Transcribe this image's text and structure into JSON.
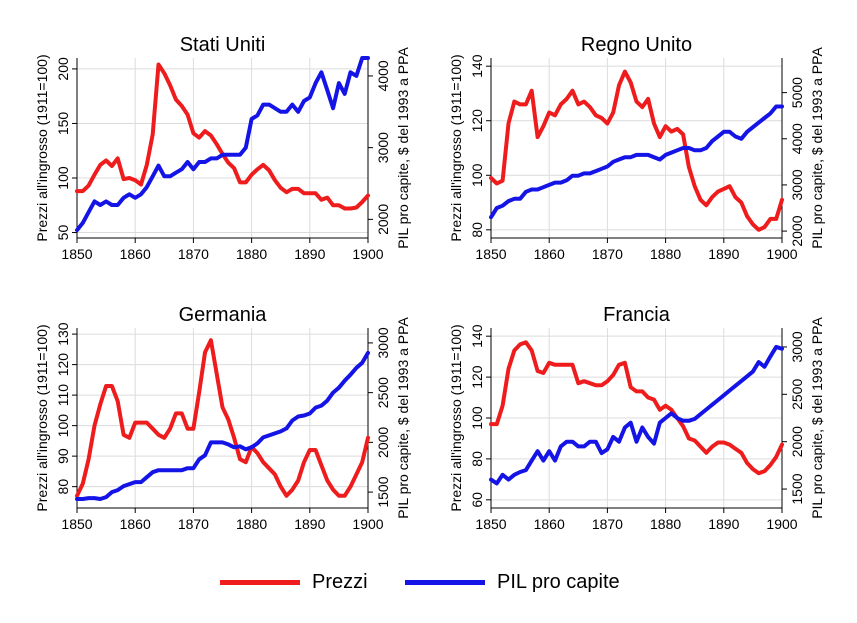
{
  "colors": {
    "prices": "#ee1c1c",
    "gdp": "#1414e6",
    "grid": "#dcdcdc"
  },
  "legend": {
    "prices": "Prezzi",
    "gdp": "PIL pro capite"
  },
  "chart_data": [
    {
      "type": "line",
      "title": "Stati Uniti",
      "ylabel_left": "Prezzi all'ingrosso (1911=100)",
      "ylabel_right": "PIL pro capite, $ del 1993 a PPA",
      "xlim": [
        1850,
        1900
      ],
      "ylim_left": [
        45,
        210
      ],
      "ylim_right": [
        1740,
        4250
      ],
      "x_ticks": [
        1850,
        1860,
        1870,
        1880,
        1890,
        1900
      ],
      "y_ticks_left": [
        50,
        100,
        150,
        200
      ],
      "y_ticks_right": [
        2000,
        3000,
        4000
      ],
      "series": [
        {
          "name": "Prezzi",
          "axis": "left",
          "x": [
            1850,
            1851,
            1852,
            1853,
            1854,
            1855,
            1856,
            1857,
            1858,
            1859,
            1860,
            1861,
            1862,
            1863,
            1864,
            1865,
            1866,
            1867,
            1868,
            1869,
            1870,
            1871,
            1872,
            1873,
            1874,
            1875,
            1876,
            1877,
            1878,
            1879,
            1880,
            1881,
            1882,
            1883,
            1884,
            1885,
            1886,
            1887,
            1888,
            1889,
            1890,
            1891,
            1892,
            1893,
            1894,
            1895,
            1896,
            1897,
            1898,
            1899,
            1900
          ],
          "values": [
            88,
            88,
            93,
            103,
            112,
            116,
            111,
            118,
            99,
            100,
            98,
            94,
            112,
            140,
            204,
            196,
            185,
            172,
            166,
            158,
            141,
            137,
            143,
            139,
            131,
            122,
            114,
            109,
            96,
            96,
            103,
            108,
            112,
            107,
            98,
            91,
            87,
            90,
            90,
            86,
            86,
            86,
            80,
            82,
            75,
            75,
            72,
            72,
            73,
            78,
            84
          ]
        },
        {
          "name": "PIL pro capite",
          "axis": "right",
          "x": [
            1850,
            1851,
            1852,
            1853,
            1854,
            1855,
            1856,
            1857,
            1858,
            1859,
            1860,
            1861,
            1862,
            1863,
            1864,
            1865,
            1866,
            1867,
            1868,
            1869,
            1870,
            1871,
            1872,
            1873,
            1874,
            1875,
            1876,
            1877,
            1878,
            1879,
            1880,
            1881,
            1882,
            1883,
            1884,
            1885,
            1886,
            1887,
            1888,
            1889,
            1890,
            1891,
            1892,
            1893,
            1894,
            1895,
            1896,
            1897,
            1898,
            1899,
            1900
          ],
          "values": [
            1850,
            1950,
            2100,
            2250,
            2200,
            2250,
            2200,
            2200,
            2300,
            2350,
            2300,
            2350,
            2450,
            2600,
            2750,
            2600,
            2600,
            2650,
            2700,
            2800,
            2700,
            2800,
            2800,
            2850,
            2850,
            2900,
            2900,
            2900,
            2900,
            3000,
            3400,
            3450,
            3600,
            3600,
            3550,
            3500,
            3500,
            3600,
            3500,
            3650,
            3700,
            3900,
            4050,
            3800,
            3550,
            3900,
            3750,
            4050,
            4000,
            4250,
            4250
          ]
        }
      ]
    },
    {
      "type": "line",
      "title": "Regno Unito",
      "ylabel_left": "Prezzi all'ingrosso (1911=100)",
      "ylabel_right": "PIL pro capite, $ del 1993 a PPA",
      "xlim": [
        1850,
        1900
      ],
      "ylim_left": [
        77,
        143
      ],
      "ylim_right": [
        1850,
        5750
      ],
      "x_ticks": [
        1850,
        1860,
        1870,
        1880,
        1890,
        1900
      ],
      "y_ticks_left": [
        80,
        100,
        120,
        140
      ],
      "y_ticks_right": [
        2000,
        3000,
        4000,
        5000
      ],
      "series": [
        {
          "name": "Prezzi",
          "axis": "left",
          "x": [
            1850,
            1851,
            1852,
            1853,
            1854,
            1855,
            1856,
            1857,
            1858,
            1859,
            1860,
            1861,
            1862,
            1863,
            1864,
            1865,
            1866,
            1867,
            1868,
            1869,
            1870,
            1871,
            1872,
            1873,
            1874,
            1875,
            1876,
            1877,
            1878,
            1879,
            1880,
            1881,
            1882,
            1883,
            1884,
            1885,
            1886,
            1887,
            1888,
            1889,
            1890,
            1891,
            1892,
            1893,
            1894,
            1895,
            1896,
            1897,
            1898,
            1899,
            1900
          ],
          "values": [
            99,
            97,
            98,
            119,
            127,
            126,
            126,
            131,
            114,
            118,
            123,
            122,
            126,
            128,
            131,
            126,
            127,
            125,
            122,
            121,
            119,
            123,
            133,
            138,
            134,
            127,
            125,
            128,
            119,
            114,
            118,
            116,
            117,
            115,
            103,
            96,
            91,
            89,
            92,
            94,
            95,
            96,
            92,
            90,
            85,
            82,
            80,
            81,
            84,
            84,
            91
          ]
        },
        {
          "name": "PIL pro capite",
          "axis": "right",
          "x": [
            1850,
            1851,
            1852,
            1853,
            1854,
            1855,
            1856,
            1857,
            1858,
            1859,
            1860,
            1861,
            1862,
            1863,
            1864,
            1865,
            1866,
            1867,
            1868,
            1869,
            1870,
            1871,
            1872,
            1873,
            1874,
            1875,
            1876,
            1877,
            1878,
            1879,
            1880,
            1881,
            1882,
            1883,
            1884,
            1885,
            1886,
            1887,
            1888,
            1889,
            1890,
            1891,
            1892,
            1893,
            1894,
            1895,
            1896,
            1897,
            1898,
            1899,
            1900
          ],
          "values": [
            2300,
            2500,
            2550,
            2650,
            2700,
            2700,
            2850,
            2900,
            2900,
            2950,
            3000,
            3050,
            3050,
            3100,
            3200,
            3200,
            3250,
            3250,
            3300,
            3350,
            3400,
            3500,
            3550,
            3600,
            3600,
            3650,
            3650,
            3650,
            3600,
            3550,
            3650,
            3700,
            3750,
            3800,
            3800,
            3750,
            3750,
            3800,
            3950,
            4050,
            4150,
            4150,
            4050,
            4000,
            4150,
            4250,
            4350,
            4450,
            4550,
            4700,
            4700
          ]
        }
      ]
    },
    {
      "type": "line",
      "title": "Germania",
      "ylabel_left": "Prezzi all'ingrosso (1911=100)",
      "ylabel_right": "PIL pro capite, $ del 1993 a PPA",
      "xlim": [
        1850,
        1900
      ],
      "ylim_left": [
        73,
        132
      ],
      "ylim_right": [
        1340,
        3150
      ],
      "x_ticks": [
        1850,
        1860,
        1870,
        1880,
        1890,
        1900
      ],
      "y_ticks_left": [
        80,
        90,
        100,
        110,
        120,
        130
      ],
      "y_ticks_right": [
        1500,
        2000,
        2500,
        3000
      ],
      "series": [
        {
          "name": "Prezzi",
          "axis": "left",
          "x": [
            1850,
            1851,
            1852,
            1853,
            1854,
            1855,
            1856,
            1857,
            1858,
            1859,
            1860,
            1861,
            1862,
            1863,
            1864,
            1865,
            1866,
            1867,
            1868,
            1869,
            1870,
            1871,
            1872,
            1873,
            1874,
            1875,
            1876,
            1877,
            1878,
            1879,
            1880,
            1881,
            1882,
            1883,
            1884,
            1885,
            1886,
            1887,
            1888,
            1889,
            1890,
            1891,
            1892,
            1893,
            1894,
            1895,
            1896,
            1897,
            1898,
            1899,
            1900
          ],
          "values": [
            77,
            81,
            89,
            100,
            107,
            113,
            113,
            108,
            97,
            96,
            101,
            101,
            101,
            99,
            97,
            96,
            99,
            104,
            104,
            99,
            99,
            111,
            124,
            128,
            117,
            106,
            102,
            96,
            89,
            88,
            93,
            91,
            88,
            86,
            84,
            80,
            77,
            79,
            82,
            88,
            92,
            92,
            87,
            82,
            79,
            77,
            77,
            80,
            84,
            88,
            96
          ]
        },
        {
          "name": "PIL pro capite",
          "axis": "right",
          "x": [
            1850,
            1851,
            1852,
            1853,
            1854,
            1855,
            1856,
            1857,
            1858,
            1859,
            1860,
            1861,
            1862,
            1863,
            1864,
            1865,
            1866,
            1867,
            1868,
            1869,
            1870,
            1871,
            1872,
            1873,
            1874,
            1875,
            1876,
            1877,
            1878,
            1879,
            1880,
            1881,
            1882,
            1883,
            1884,
            1885,
            1886,
            1887,
            1888,
            1889,
            1890,
            1891,
            1892,
            1893,
            1894,
            1895,
            1896,
            1897,
            1898,
            1899,
            1900
          ],
          "values": [
            1430,
            1430,
            1440,
            1440,
            1430,
            1450,
            1500,
            1520,
            1560,
            1580,
            1600,
            1600,
            1650,
            1700,
            1720,
            1720,
            1720,
            1720,
            1720,
            1740,
            1740,
            1830,
            1870,
            2000,
            2000,
            2000,
            1980,
            1950,
            1960,
            1930,
            1950,
            1990,
            2050,
            2070,
            2090,
            2110,
            2140,
            2220,
            2260,
            2270,
            2290,
            2350,
            2370,
            2420,
            2500,
            2550,
            2620,
            2680,
            2750,
            2800,
            2900
          ]
        }
      ]
    },
    {
      "type": "line",
      "title": "Francia",
      "ylabel_left": "Prezzi all'ingrosso (1911=100)",
      "ylabel_right": "PIL pro capite, $ del 1993 a PPA",
      "xlim": [
        1850,
        1900
      ],
      "ylim_left": [
        56,
        144
      ],
      "ylim_right": [
        1300,
        3200
      ],
      "x_ticks": [
        1850,
        1860,
        1870,
        1880,
        1890,
        1900
      ],
      "y_ticks_left": [
        60,
        80,
        100,
        120,
        140
      ],
      "y_ticks_right": [
        1500,
        2000,
        2500,
        3000
      ],
      "series": [
        {
          "name": "Prezzi",
          "axis": "left",
          "x": [
            1850,
            1851,
            1852,
            1853,
            1854,
            1855,
            1856,
            1857,
            1858,
            1859,
            1860,
            1861,
            1862,
            1863,
            1864,
            1865,
            1866,
            1867,
            1868,
            1869,
            1870,
            1871,
            1872,
            1873,
            1874,
            1875,
            1876,
            1877,
            1878,
            1879,
            1880,
            1881,
            1882,
            1883,
            1884,
            1885,
            1886,
            1887,
            1888,
            1889,
            1890,
            1891,
            1892,
            1893,
            1894,
            1895,
            1896,
            1897,
            1898,
            1899,
            1900
          ],
          "values": [
            97,
            97,
            106,
            124,
            133,
            136,
            137,
            133,
            123,
            122,
            127,
            126,
            126,
            126,
            126,
            117,
            118,
            117,
            116,
            116,
            118,
            121,
            126,
            127,
            115,
            113,
            113,
            110,
            109,
            104,
            106,
            104,
            100,
            96,
            90,
            89,
            86,
            83,
            86,
            88,
            88,
            87,
            85,
            83,
            78,
            75,
            73,
            74,
            77,
            81,
            87
          ]
        },
        {
          "name": "PIL pro capite",
          "axis": "right",
          "x": [
            1850,
            1851,
            1852,
            1853,
            1854,
            1855,
            1856,
            1857,
            1858,
            1859,
            1860,
            1861,
            1862,
            1863,
            1864,
            1865,
            1866,
            1867,
            1868,
            1869,
            1870,
            1871,
            1872,
            1873,
            1874,
            1875,
            1876,
            1877,
            1878,
            1879,
            1880,
            1881,
            1882,
            1883,
            1884,
            1885,
            1886,
            1887,
            1888,
            1889,
            1890,
            1891,
            1892,
            1893,
            1894,
            1895,
            1896,
            1897,
            1898,
            1899,
            1900
          ],
          "values": [
            1600,
            1560,
            1650,
            1600,
            1650,
            1680,
            1700,
            1800,
            1900,
            1800,
            1900,
            1800,
            1950,
            2000,
            2000,
            1950,
            1950,
            2000,
            2000,
            1880,
            1920,
            2050,
            2000,
            2150,
            2200,
            2000,
            2150,
            2050,
            1980,
            2200,
            2250,
            2300,
            2250,
            2220,
            2220,
            2240,
            2290,
            2340,
            2390,
            2440,
            2490,
            2540,
            2590,
            2640,
            2690,
            2740,
            2840,
            2790,
            2900,
            3000,
            2980
          ]
        }
      ]
    }
  ]
}
